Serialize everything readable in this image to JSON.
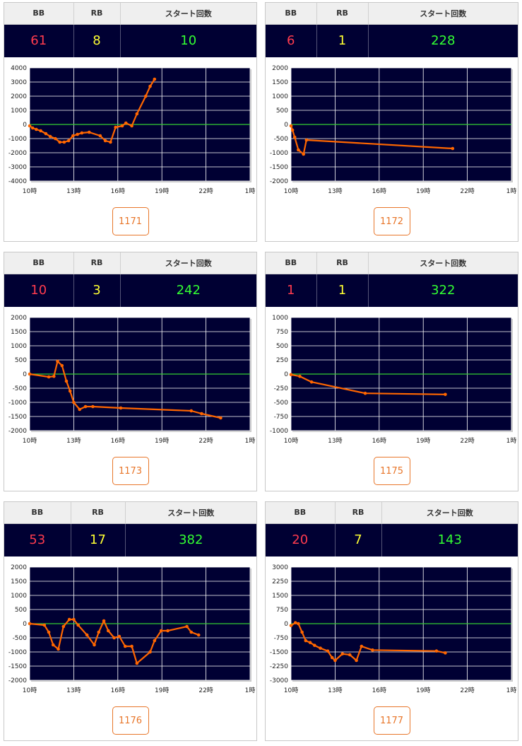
{
  "labels": {
    "bb": "BB",
    "rb": "RB",
    "start": "スタート回数"
  },
  "colors": {
    "bb": "#ff3b4e",
    "rb": "#ffff33",
    "start": "#33ff33",
    "line": "#ff6600",
    "zero": "#33cc33",
    "plot_bg": "#000033",
    "button": "#e8762a"
  },
  "machines": [
    {
      "bb": "61",
      "rb": "8",
      "start": "10",
      "number": "1171",
      "chart_data": {
        "type": "line",
        "ylim": [
          -4000,
          4000
        ],
        "yticks": [
          4000,
          3000,
          2000,
          1000,
          0,
          -1000,
          -2000,
          -3000,
          -4000
        ],
        "xlim": [
          10,
          25
        ],
        "xticks": [
          "10時",
          "13時",
          "16時",
          "19時",
          "22時",
          "1時"
        ],
        "x": [
          10.0,
          10.2,
          10.45,
          10.75,
          11.1,
          11.4,
          11.75,
          12.05,
          12.35,
          12.65,
          12.95,
          13.25,
          13.55,
          14.05,
          14.8,
          15.15,
          15.5,
          15.85,
          16.3,
          16.55,
          16.95,
          17.3,
          17.9,
          18.2,
          18.5
        ],
        "y": [
          -100,
          -250,
          -350,
          -450,
          -650,
          -850,
          -1000,
          -1250,
          -1250,
          -1150,
          -800,
          -700,
          -600,
          -550,
          -800,
          -1150,
          -1250,
          -200,
          -100,
          100,
          -100,
          750,
          2000,
          2700,
          3200
        ]
      }
    },
    {
      "bb": "6",
      "rb": "1",
      "start": "228",
      "number": "1172",
      "chart_data": {
        "type": "line",
        "ylim": [
          -2000,
          2000
        ],
        "yticks": [
          2000,
          1500,
          1000,
          500,
          0,
          -500,
          -1000,
          -1500,
          -2000
        ],
        "xlim": [
          10,
          25
        ],
        "xticks": [
          "10時",
          "13時",
          "16時",
          "19時",
          "22時",
          "1時"
        ],
        "x": [
          10.0,
          10.1,
          10.25,
          10.5,
          10.85,
          11.05,
          21.0
        ],
        "y": [
          -50,
          -200,
          -450,
          -900,
          -1050,
          -550,
          -850
        ]
      }
    },
    {
      "bb": "10",
      "rb": "3",
      "start": "242",
      "number": "1173",
      "chart_data": {
        "type": "line",
        "ylim": [
          -2000,
          2000
        ],
        "yticks": [
          2000,
          1500,
          1000,
          500,
          0,
          -500,
          -1000,
          -1500,
          -2000
        ],
        "xlim": [
          10,
          25
        ],
        "xticks": [
          "10時",
          "13時",
          "16時",
          "19時",
          "22時",
          "1時"
        ],
        "x": [
          10.0,
          11.3,
          11.65,
          11.9,
          12.2,
          12.5,
          12.75,
          13.0,
          13.4,
          13.8,
          14.3,
          16.2,
          21.0,
          21.7,
          23.0
        ],
        "y": [
          0,
          -100,
          -80,
          450,
          300,
          -250,
          -600,
          -1000,
          -1250,
          -1150,
          -1150,
          -1200,
          -1300,
          -1400,
          -1550
        ]
      }
    },
    {
      "bb": "1",
      "rb": "1",
      "start": "322",
      "number": "1175",
      "chart_data": {
        "type": "line",
        "ylim": [
          -1000,
          1000
        ],
        "yticks": [
          1000,
          750,
          500,
          250,
          0,
          -250,
          -500,
          -750,
          -1000
        ],
        "xlim": [
          10,
          25
        ],
        "xticks": [
          "10時",
          "13時",
          "16時",
          "19時",
          "22時",
          "1時"
        ],
        "x": [
          10.0,
          10.6,
          11.4,
          15.05,
          20.5
        ],
        "y": [
          -10,
          -40,
          -140,
          -340,
          -360
        ]
      }
    },
    {
      "bb": "53",
      "rb": "17",
      "start": "382",
      "number": "1176",
      "chart_data": {
        "type": "line",
        "ylim": [
          -2000,
          2000
        ],
        "yticks": [
          2000,
          1500,
          1000,
          500,
          0,
          -500,
          -1000,
          -1500,
          -2000
        ],
        "xlim": [
          10,
          25
        ],
        "xticks": [
          "10時",
          "13時",
          "16時",
          "19時",
          "22時",
          "1時"
        ],
        "x": [
          10.0,
          11.0,
          11.3,
          11.6,
          11.95,
          12.3,
          12.7,
          13.0,
          13.3,
          13.9,
          14.4,
          14.7,
          15.05,
          15.35,
          15.75,
          16.1,
          16.5,
          16.95,
          17.3,
          18.2,
          18.5,
          18.95,
          19.4,
          20.7,
          21.0,
          21.5
        ],
        "y": [
          0,
          -50,
          -300,
          -750,
          -900,
          -100,
          150,
          150,
          -50,
          -400,
          -750,
          -300,
          100,
          -250,
          -500,
          -450,
          -800,
          -800,
          -1400,
          -1000,
          -600,
          -250,
          -250,
          -100,
          -300,
          -400
        ]
      }
    },
    {
      "bb": "20",
      "rb": "7",
      "start": "143",
      "number": "1177",
      "chart_data": {
        "type": "line",
        "ylim": [
          -3000,
          3000
        ],
        "yticks": [
          3000,
          2250,
          1500,
          750,
          0,
          -750,
          -1500,
          -2250,
          -3000
        ],
        "xlim": [
          10,
          25
        ],
        "xticks": [
          "10時",
          "13時",
          "16時",
          "19時",
          "22時",
          "1時"
        ],
        "x": [
          10.0,
          10.3,
          10.5,
          10.75,
          11.0,
          11.3,
          11.6,
          12.0,
          12.5,
          12.8,
          13.0,
          13.5,
          14.0,
          14.45,
          14.8,
          15.55,
          19.9,
          20.5
        ],
        "y": [
          -100,
          50,
          0,
          -450,
          -900,
          -1000,
          -1150,
          -1300,
          -1450,
          -1800,
          -1950,
          -1600,
          -1650,
          -1950,
          -1200,
          -1400,
          -1450,
          -1550
        ]
      }
    }
  ]
}
